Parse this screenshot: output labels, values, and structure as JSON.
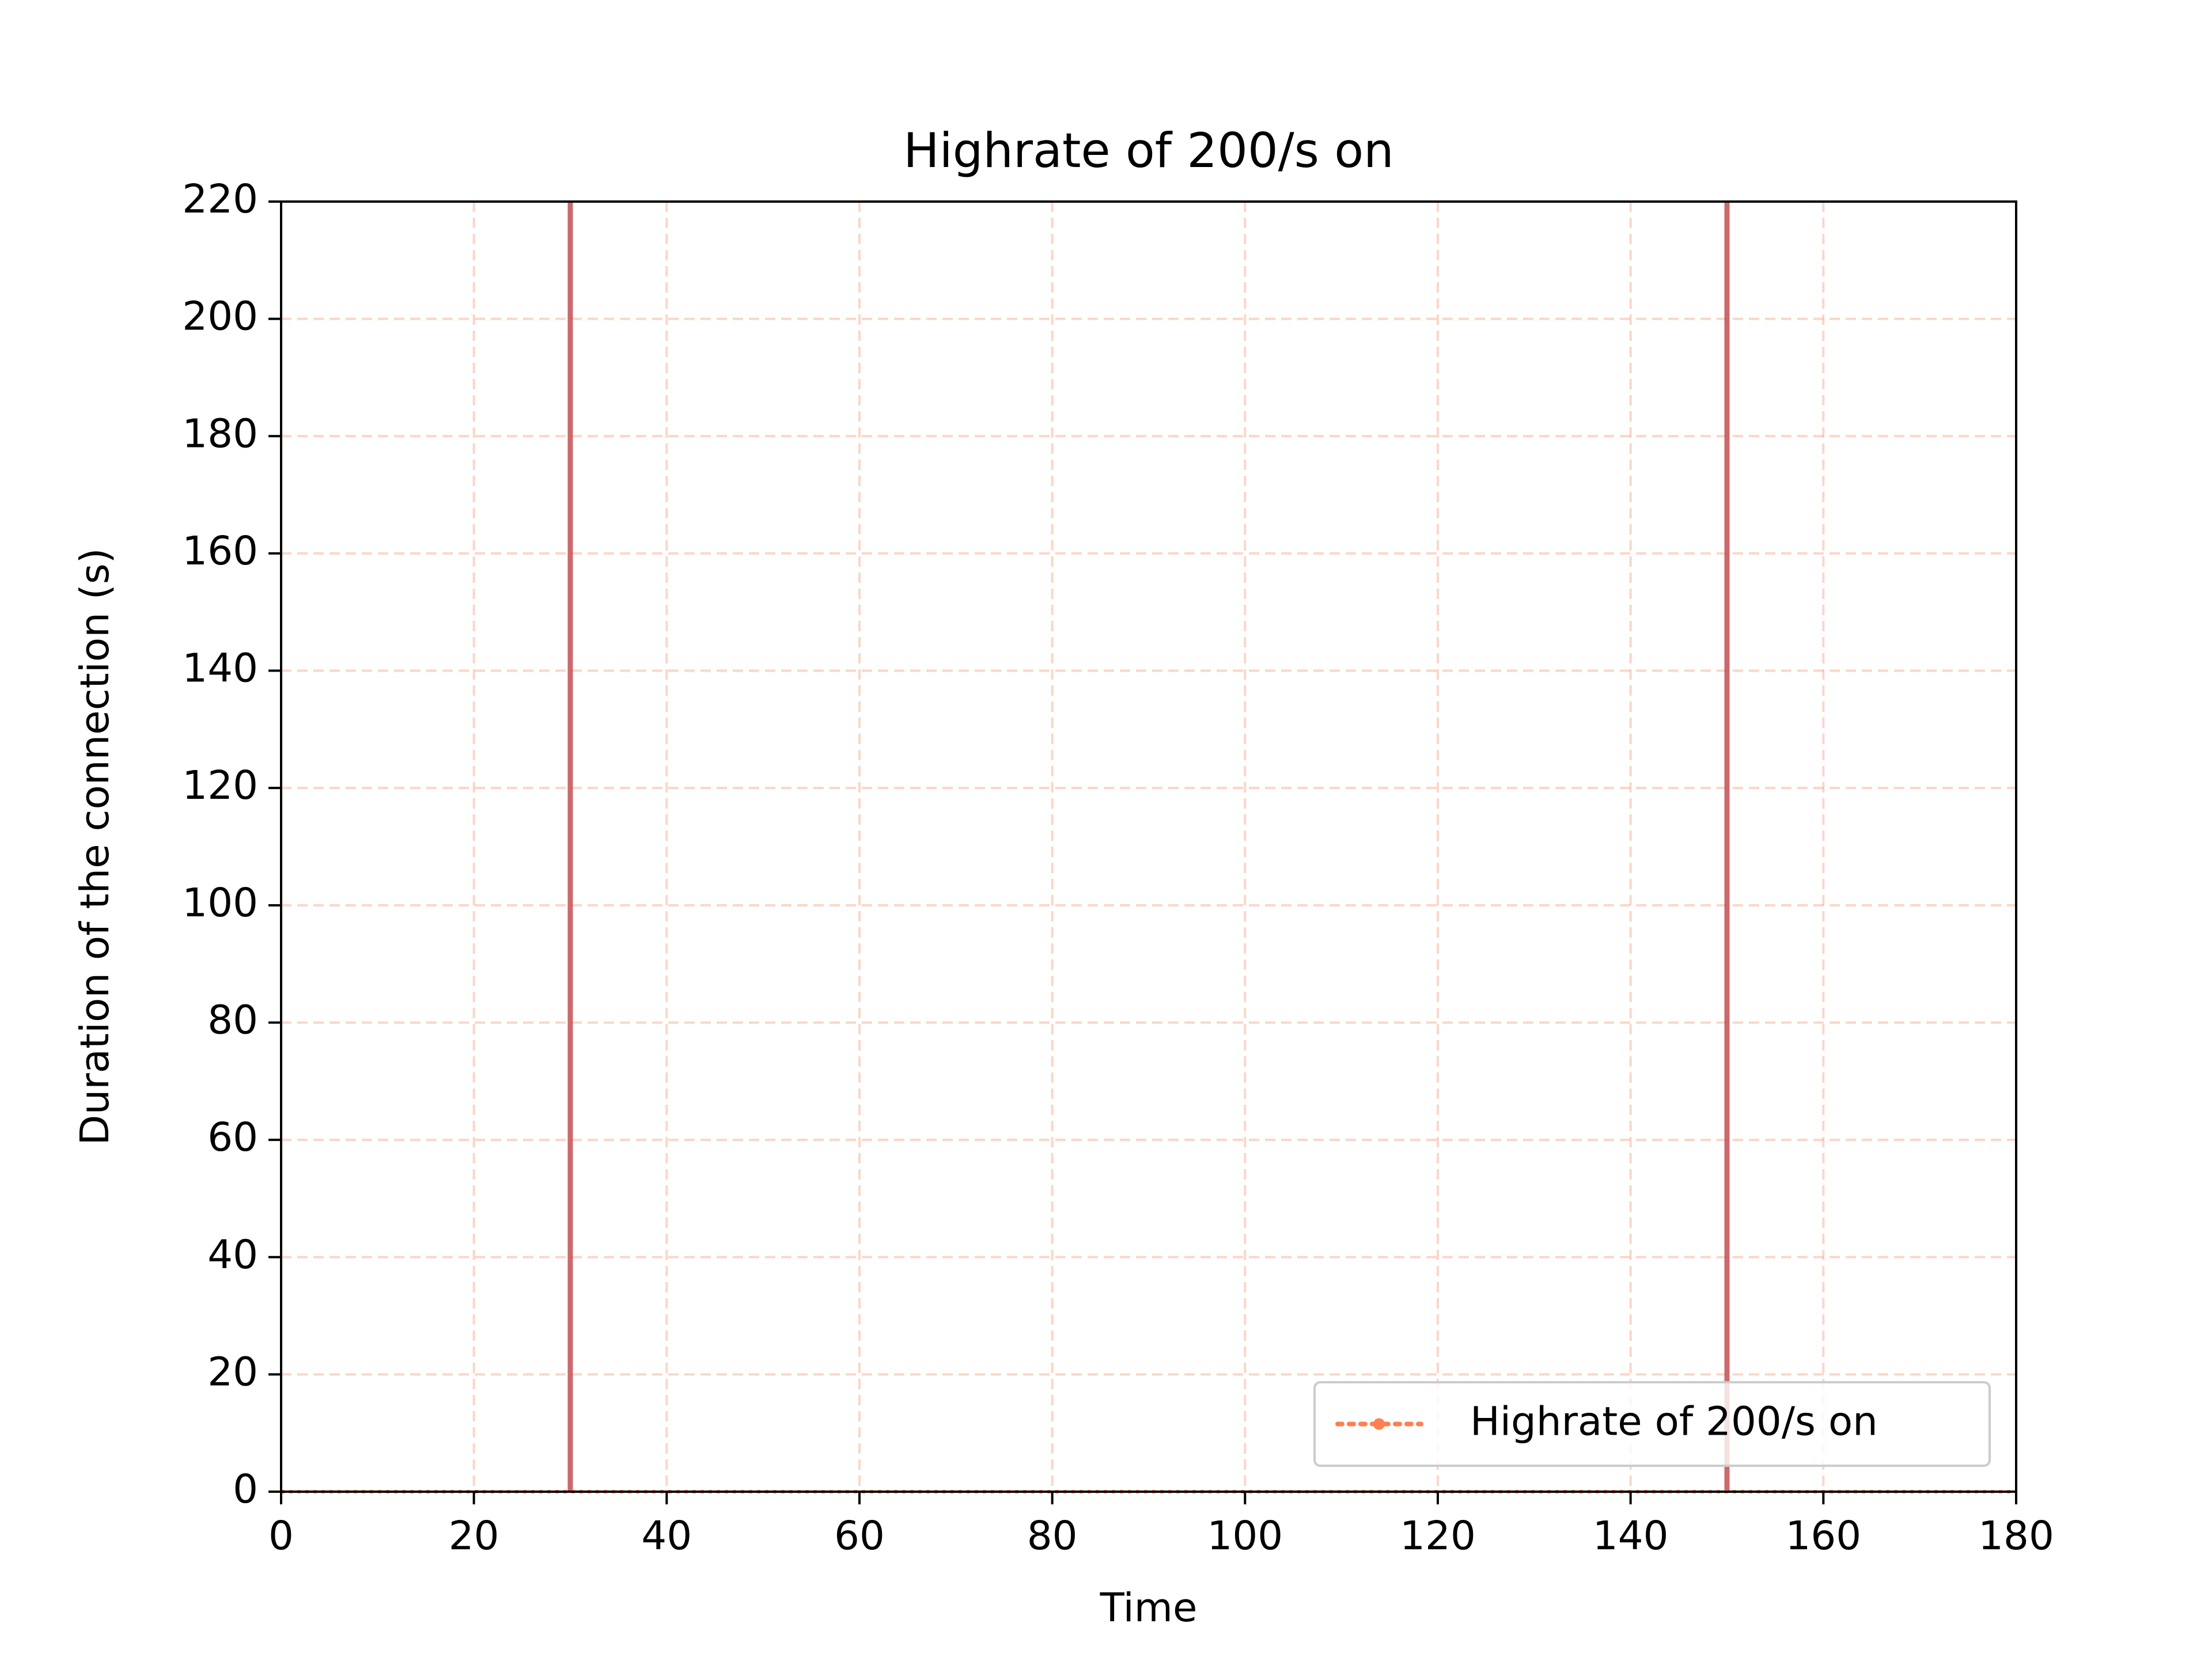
{
  "chart_data": {
    "type": "line",
    "title": "Highrate of 200/s on",
    "xlabel": "Time",
    "ylabel": "Duration of the connection (s)",
    "xlim": [
      0,
      180
    ],
    "ylim": [
      0,
      220
    ],
    "xticks": [
      0,
      20,
      40,
      60,
      80,
      100,
      120,
      140,
      160,
      180
    ],
    "yticks": [
      0,
      20,
      40,
      60,
      80,
      100,
      120,
      140,
      160,
      180,
      200,
      220
    ],
    "grid": true,
    "grid_color": "#f4a582",
    "legend_position": "lower right",
    "series": [
      {
        "name": "Highrate of 200/s on",
        "color": "#ff7f50",
        "line_style": "dotted",
        "marker": "point",
        "x": [
          0,
          180
        ],
        "y": [
          0,
          0
        ]
      }
    ],
    "vertical_lines": [
      {
        "x": 30,
        "color": "#c44e52"
      },
      {
        "x": 150,
        "color": "#c44e52"
      }
    ]
  }
}
